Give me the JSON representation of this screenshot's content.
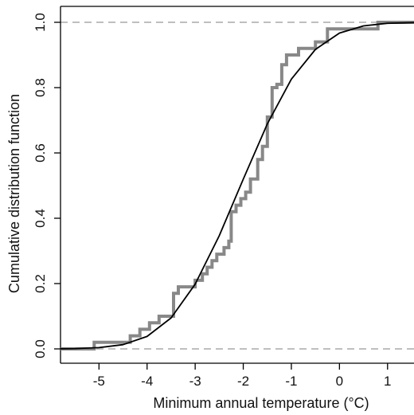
{
  "chart_data": {
    "type": "line",
    "title": "",
    "xlabel": "Minimum annual temperature  (°C)",
    "ylabel": "Cumulative distribution function",
    "xlim": [
      -5.8,
      1.55
    ],
    "ylim": [
      0,
      1
    ],
    "x_ticks": [
      -5,
      -4,
      -3,
      -2,
      -1,
      0,
      1
    ],
    "x_tick_labels": [
      "-5",
      "-4",
      "-3",
      "-2",
      "-1",
      "0",
      "1"
    ],
    "y_ticks": [
      0,
      0.2,
      0.4,
      0.6,
      0.8,
      1
    ],
    "y_tick_labels": [
      "0.0",
      "0.2",
      "0.4",
      "0.6",
      "0.8",
      "1.0"
    ],
    "reference_lines": [
      0,
      1
    ],
    "grid": false,
    "legend": "none",
    "colors": {
      "empirical": "#888888",
      "fitted": "#000000",
      "reference": "#aaaaaa",
      "axis": "#000000"
    },
    "series": [
      {
        "style": "step",
        "points": [
          [
            -5.8,
            0
          ],
          [
            -5.1,
            0
          ],
          [
            -5.1,
            0.02
          ],
          [
            -4.35,
            0.02
          ],
          [
            -4.35,
            0.04
          ],
          [
            -4.15,
            0.04
          ],
          [
            -4.15,
            0.06
          ],
          [
            -3.95,
            0.06
          ],
          [
            -3.95,
            0.08
          ],
          [
            -3.75,
            0.08
          ],
          [
            -3.75,
            0.1
          ],
          [
            -3.45,
            0.1
          ],
          [
            -3.45,
            0.17
          ],
          [
            -3.35,
            0.17
          ],
          [
            -3.35,
            0.19
          ],
          [
            -3.0,
            0.19
          ],
          [
            -3.0,
            0.21
          ],
          [
            -2.85,
            0.21
          ],
          [
            -2.85,
            0.23
          ],
          [
            -2.75,
            0.23
          ],
          [
            -2.75,
            0.25
          ],
          [
            -2.65,
            0.25
          ],
          [
            -2.65,
            0.27
          ],
          [
            -2.55,
            0.27
          ],
          [
            -2.55,
            0.29
          ],
          [
            -2.4,
            0.29
          ],
          [
            -2.4,
            0.31
          ],
          [
            -2.3,
            0.31
          ],
          [
            -2.3,
            0.33
          ],
          [
            -2.25,
            0.33
          ],
          [
            -2.25,
            0.42
          ],
          [
            -2.15,
            0.42
          ],
          [
            -2.15,
            0.44
          ],
          [
            -2.05,
            0.44
          ],
          [
            -2.05,
            0.46
          ],
          [
            -1.95,
            0.46
          ],
          [
            -1.95,
            0.48
          ],
          [
            -1.85,
            0.48
          ],
          [
            -1.85,
            0.52
          ],
          [
            -1.7,
            0.52
          ],
          [
            -1.7,
            0.58
          ],
          [
            -1.6,
            0.58
          ],
          [
            -1.6,
            0.62
          ],
          [
            -1.5,
            0.62
          ],
          [
            -1.5,
            0.71
          ],
          [
            -1.4,
            0.71
          ],
          [
            -1.4,
            0.8
          ],
          [
            -1.3,
            0.8
          ],
          [
            -1.3,
            0.81
          ],
          [
            -1.2,
            0.81
          ],
          [
            -1.2,
            0.87
          ],
          [
            -1.1,
            0.87
          ],
          [
            -1.1,
            0.9
          ],
          [
            -0.85,
            0.9
          ],
          [
            -0.85,
            0.92
          ],
          [
            -0.5,
            0.92
          ],
          [
            -0.5,
            0.94
          ],
          [
            -0.25,
            0.94
          ],
          [
            -0.25,
            0.98
          ],
          [
            0.8,
            0.98
          ],
          [
            0.8,
            1.0
          ],
          [
            1.55,
            1.0
          ]
        ]
      },
      {
        "style": "curve",
        "points": [
          [
            -5.8,
            0.0004
          ],
          [
            -5.5,
            0.001
          ],
          [
            -5.0,
            0.004
          ],
          [
            -4.5,
            0.013
          ],
          [
            -4.0,
            0.038
          ],
          [
            -3.5,
            0.095
          ],
          [
            -3.0,
            0.198
          ],
          [
            -2.5,
            0.346
          ],
          [
            -2.0,
            0.52
          ],
          [
            -1.5,
            0.689
          ],
          [
            -1.0,
            0.826
          ],
          [
            -0.5,
            0.917
          ],
          [
            0.0,
            0.967
          ],
          [
            0.5,
            0.989
          ],
          [
            1.0,
            0.997
          ],
          [
            1.55,
            0.999
          ]
        ]
      }
    ]
  }
}
